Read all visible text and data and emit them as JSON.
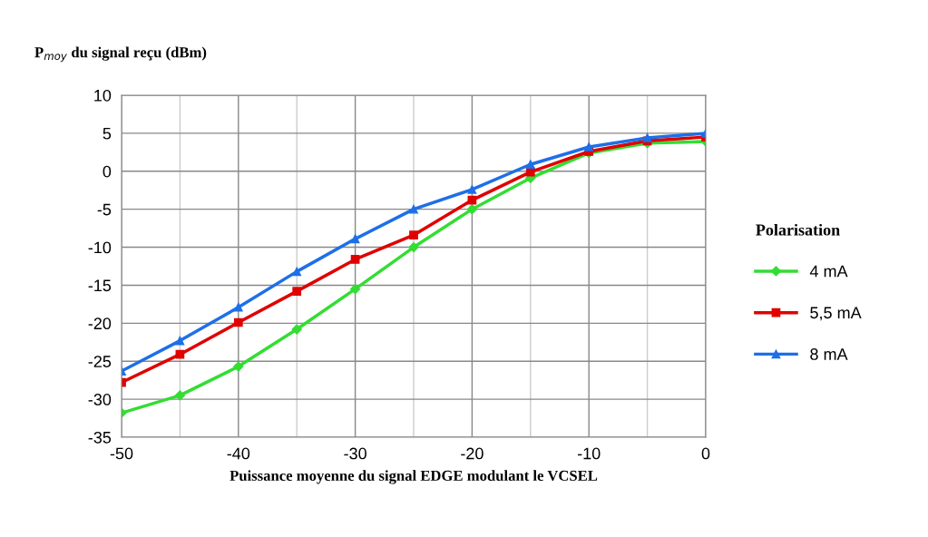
{
  "chart_data": {
    "type": "line",
    "ylabel": "P$_{moy}$ du signal reçu (dBm)",
    "xlabel": "Puissance moyenne du signal EDGE modulant le VCSEL",
    "legend_title": "Polarisation",
    "legend": "right",
    "grid": true,
    "line_style": "solid",
    "x": [
      -50,
      -45,
      -40,
      -35,
      -30,
      -25,
      -20,
      -15,
      -10,
      -5,
      0
    ],
    "xlim": [
      -50,
      0
    ],
    "xticks": [
      -50,
      {
        "value": -45,
        "label": null
      },
      -40,
      {
        "value": -35,
        "label": null
      },
      -30,
      {
        "value": -25,
        "label": null
      },
      -20,
      {
        "value": -15,
        "label": null
      },
      -10,
      {
        "value": -5,
        "label": null
      },
      0
    ],
    "ylim": [
      -35,
      10
    ],
    "yticks": [
      -35,
      -30,
      -25,
      -20,
      -15,
      -10,
      -5,
      0,
      5,
      10
    ],
    "series": [
      {
        "name": "4 mA",
        "color": "#33dd33",
        "marker": "diamond",
        "values": [
          -31.8,
          -29.5,
          -25.7,
          -20.8,
          -15.5,
          -10.0,
          -5.0,
          -0.9,
          2.4,
          3.7,
          3.9
        ]
      },
      {
        "name": "5,5 mA",
        "color": "#e00000",
        "marker": "square",
        "values": [
          -27.8,
          -24.1,
          -19.9,
          -15.8,
          -11.6,
          -8.4,
          -3.8,
          -0.1,
          2.6,
          4.0,
          4.5
        ]
      },
      {
        "name": "8 mA",
        "color": "#1e6fe8",
        "marker": "triangle",
        "values": [
          -26.3,
          -22.3,
          -17.9,
          -13.2,
          -8.9,
          -5.0,
          -2.4,
          0.9,
          3.2,
          4.4,
          5.0
        ]
      }
    ]
  }
}
